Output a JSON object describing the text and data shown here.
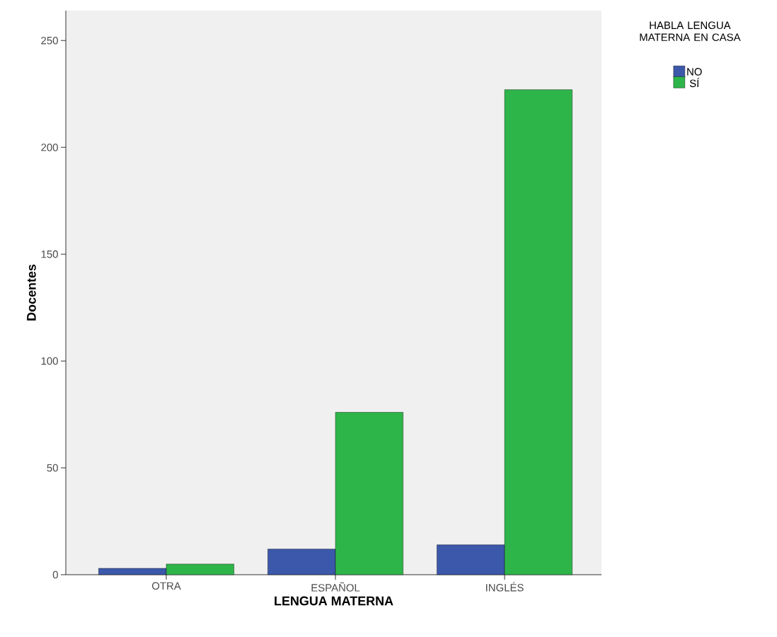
{
  "chart_data": {
    "type": "bar",
    "xlabel": "LENGUA MATERNA",
    "ylabel": "Docentes",
    "legend_title": "HABLA LENGUA MATERNA EN CASA",
    "categories": [
      "OTRA",
      "ESPAÑOL",
      "INGLÉS"
    ],
    "series": [
      {
        "name": "NO",
        "color": "#3c58aa",
        "values": [
          3,
          12,
          14
        ]
      },
      {
        "name": "SÍ",
        "color": "#2eb54a",
        "values": [
          5,
          76,
          227
        ]
      }
    ],
    "ylim": [
      0,
      264
    ],
    "yticks": [
      0,
      50,
      100,
      150,
      200,
      250
    ],
    "grid": false,
    "legend": "top right"
  }
}
